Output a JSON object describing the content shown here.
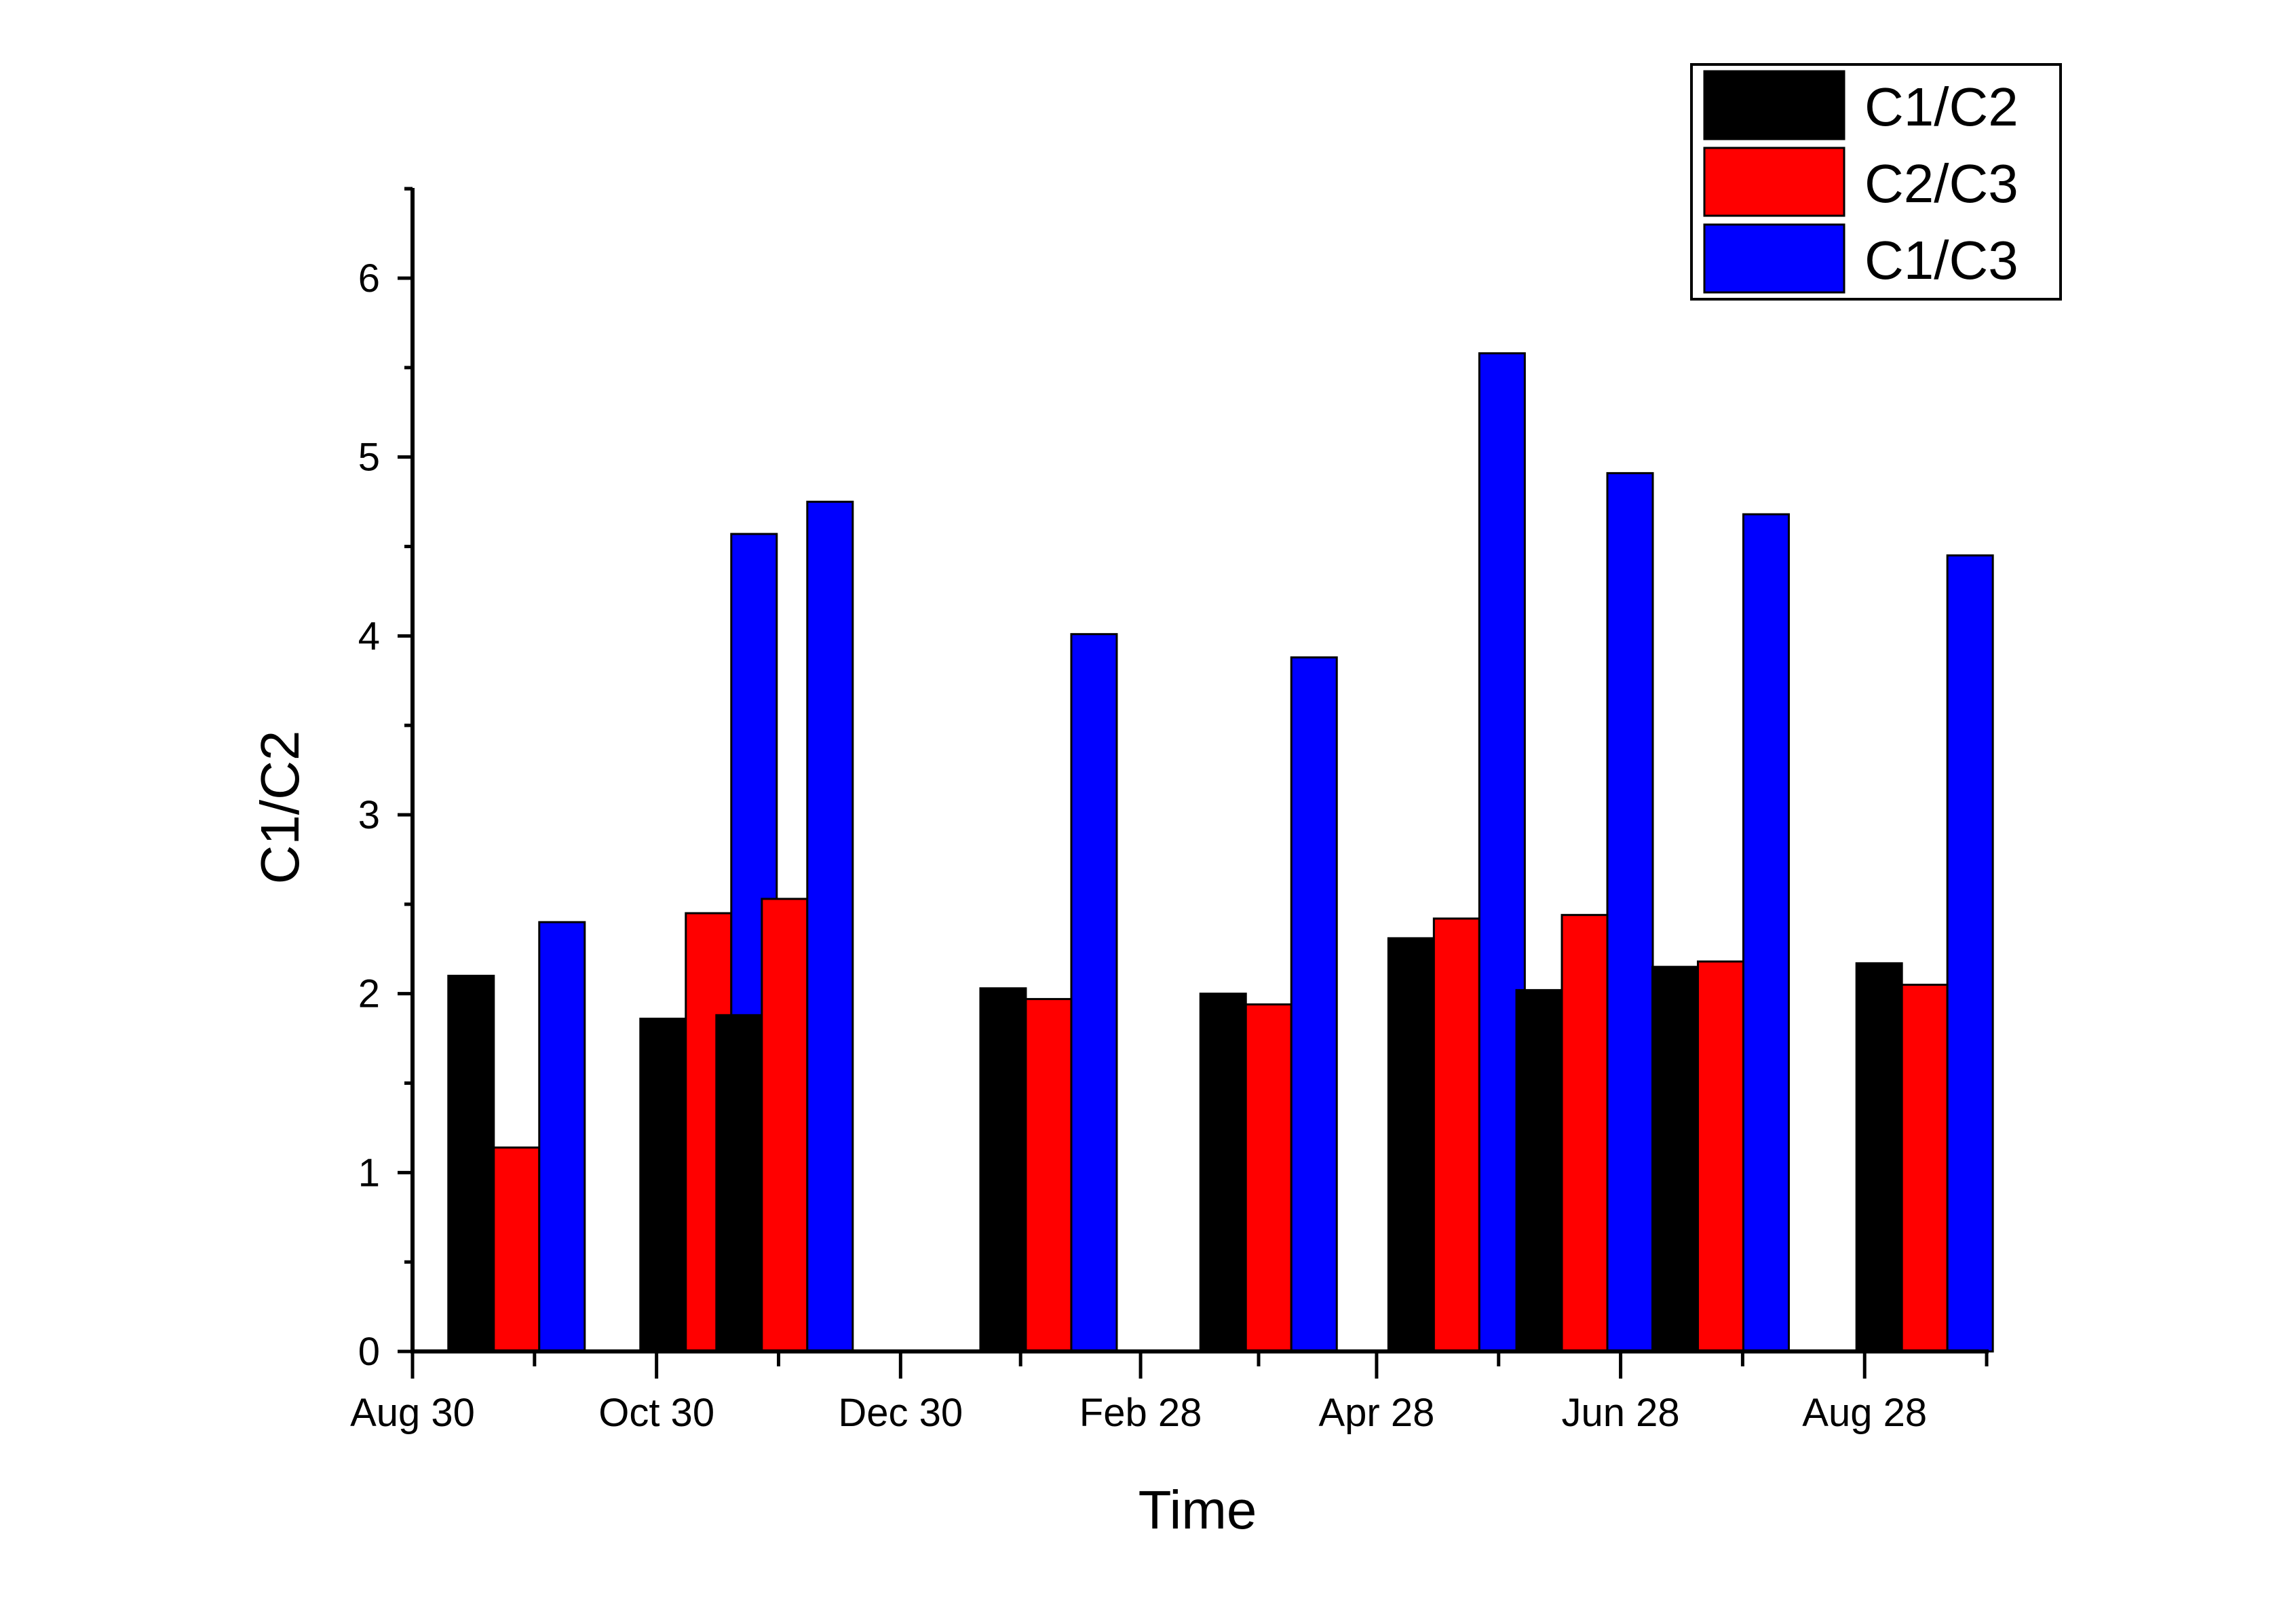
{
  "chart_data": {
    "type": "bar",
    "title": "",
    "xlabel": "Time",
    "ylabel": "C1/C2",
    "ylim": [
      0,
      6.5
    ],
    "yticks": [
      0,
      1,
      2,
      3,
      4,
      5,
      6
    ],
    "x_axis": {
      "type": "date",
      "range": [
        "2012-08-30",
        "2013-09-28"
      ],
      "tick_labels": [
        "Aug 30",
        "Oct 30",
        "Dec 30",
        "Feb 28",
        "Apr 28",
        "Jun 28",
        "Aug 28"
      ],
      "tick_dates": [
        "2012-08-30",
        "2012-10-30",
        "2012-12-30",
        "2013-02-28",
        "2013-04-28",
        "2013-06-28",
        "2013-08-28"
      ]
    },
    "groups": [
      "2012-09-25",
      "2012-11-12",
      "2012-12-01",
      "2013-02-05",
      "2013-04-01",
      "2013-05-18",
      "2013-06-19",
      "2013-07-23",
      "2013-09-12"
    ],
    "series": [
      {
        "name": "C1/C2",
        "color": "#000000",
        "values": [
          2.1,
          1.86,
          1.88,
          2.03,
          2.0,
          2.31,
          2.02,
          2.15,
          2.17
        ]
      },
      {
        "name": "C2/C3",
        "color": "#ff0000",
        "values": [
          1.14,
          2.45,
          2.53,
          1.97,
          1.94,
          2.42,
          2.44,
          2.18,
          2.05
        ]
      },
      {
        "name": "C1/C3",
        "color": "#0000ff",
        "values": [
          2.4,
          4.57,
          4.75,
          4.01,
          3.88,
          5.58,
          4.91,
          4.68,
          4.45
        ]
      }
    ],
    "legend": {
      "position": "top-right"
    },
    "grid": false
  }
}
